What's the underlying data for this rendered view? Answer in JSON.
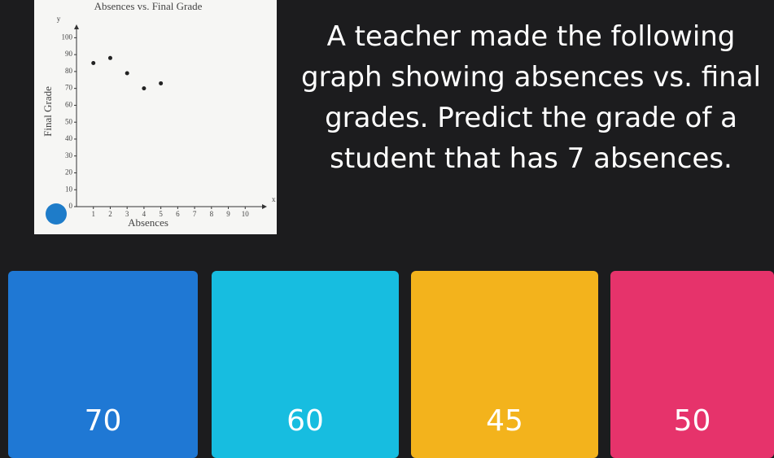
{
  "question": "A teacher made the following graph showing absences vs. final grades. Predict the grade of a student that has 7 absences.",
  "chart_data": {
    "type": "scatter",
    "title": "Absences vs. Final Grade",
    "x_label": "Absences",
    "y_label": "Final Grade",
    "x_axis_letter": "x",
    "y_axis_letter": "y",
    "x": [
      1,
      2,
      3,
      4,
      5
    ],
    "values": [
      85,
      88,
      79,
      70,
      73
    ],
    "color": "#222222",
    "xlim": [
      0,
      11
    ],
    "ylim": [
      0,
      105
    ],
    "xticks": [
      1,
      2,
      3,
      4,
      5,
      6,
      7,
      8,
      9,
      10
    ],
    "yticks": [
      0,
      10,
      20,
      30,
      40,
      50,
      60,
      70,
      80,
      90,
      100
    ]
  },
  "answers": [
    {
      "label": "70",
      "color": "#1f78d4"
    },
    {
      "label": "60",
      "color": "#17bde0"
    },
    {
      "label": "45",
      "color": "#f3b31c"
    },
    {
      "label": "50",
      "color": "#e6336b"
    }
  ]
}
